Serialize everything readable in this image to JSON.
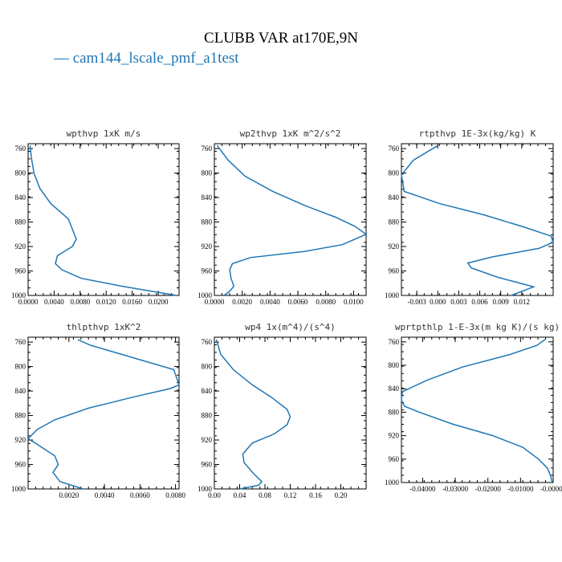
{
  "title": "CLUBB VAR at170E,9N",
  "legend_label": "— cam144_lscale_pmf_a1test",
  "colors": {
    "series": "#1f77b4",
    "axes": "#000000"
  },
  "chart_data": [
    {
      "type": "line",
      "title": "wpthvp  1xK m/s",
      "xlim": [
        0.0,
        0.0232
      ],
      "ylim": [
        1000,
        752
      ],
      "xticks": [
        "0.0000",
        "0.0040",
        "0.0080",
        "0.0120",
        "0.0160",
        "0.0200"
      ],
      "xtick_values": [
        0.0,
        0.004,
        0.008,
        0.012,
        0.016,
        0.02
      ],
      "yticks": [
        "760",
        "800",
        "840",
        "880",
        "920",
        "960",
        "1000"
      ],
      "ytick_values": [
        760,
        800,
        840,
        880,
        920,
        960,
        1000
      ],
      "x": [
        0.0003,
        0.0005,
        0.0009,
        0.0018,
        0.0035,
        0.0062,
        0.0074,
        0.0068,
        0.0045,
        0.0042,
        0.0052,
        0.0082,
        0.0145,
        0.0228
      ],
      "y": [
        755,
        775,
        800,
        825,
        850,
        875,
        908,
        920,
        935,
        948,
        958,
        972,
        985,
        1000
      ]
    },
    {
      "type": "line",
      "title": "wp2thvp  1xK m^2/s^2",
      "xlim": [
        0.0,
        0.0109
      ],
      "ylim": [
        1000,
        752
      ],
      "xticks": [
        "0.0000",
        "0.0020",
        "0.0040",
        "0.0060",
        "0.0080",
        "0.0100"
      ],
      "xtick_values": [
        0.0,
        0.002,
        0.004,
        0.006,
        0.008,
        0.01
      ],
      "yticks": [
        "760",
        "800",
        "840",
        "880",
        "920",
        "960",
        "1000"
      ],
      "ytick_values": [
        760,
        800,
        840,
        880,
        920,
        960,
        1000
      ],
      "x": [
        0.0002,
        0.001,
        0.0022,
        0.0042,
        0.0065,
        0.0087,
        0.0101,
        0.0109,
        0.0092,
        0.0065,
        0.0026,
        0.0013,
        0.0011,
        0.0012,
        0.0014,
        0.0011,
        0.0007
      ],
      "y": [
        755,
        779,
        805,
        830,
        853,
        872,
        887,
        900,
        917,
        928,
        938,
        948,
        958,
        972,
        985,
        993,
        1000
      ]
    },
    {
      "type": "line",
      "title": "rtpthvp  1E-3x(kg/kg) K",
      "xlim": [
        -0.0052,
        0.0165
      ],
      "ylim": [
        1000,
        752
      ],
      "xticks": [
        "-0.003",
        "0.000",
        "0.003",
        "0.006",
        "0.009",
        "0.012"
      ],
      "xtick_values": [
        -0.003,
        0.0,
        0.003,
        0.006,
        0.009,
        0.012
      ],
      "yticks": [
        "760",
        "800",
        "840",
        "880",
        "920",
        "960",
        "1000"
      ],
      "ytick_values": [
        760,
        800,
        840,
        880,
        920,
        960,
        1000
      ],
      "x": [
        0.0,
        -0.0035,
        -0.0052,
        -0.0048,
        0.0003,
        0.0065,
        0.012,
        0.0162,
        0.0165,
        0.0145,
        0.0078,
        0.0043,
        0.0048,
        0.0085,
        0.0137,
        0.0105
      ],
      "y": [
        755,
        779,
        803,
        830,
        850,
        868,
        887,
        903,
        913,
        923,
        937,
        947,
        955,
        970,
        986,
        1000
      ]
    },
    {
      "type": "line",
      "title": "thlpthvp  1xK^2",
      "xlim": [
        -0.0003,
        0.0082
      ],
      "ylim": [
        1000,
        752
      ],
      "xticks": [
        "0.0020",
        "0.0040",
        "0.0060",
        "0.0080"
      ],
      "xtick_values": [
        0.002,
        0.004,
        0.006,
        0.008
      ],
      "yticks": [
        "760",
        "800",
        "840",
        "880",
        "920",
        "960",
        "1000"
      ],
      "ytick_values": [
        760,
        800,
        840,
        880,
        920,
        960,
        1000
      ],
      "x": [
        0.0025,
        0.0032,
        0.0079,
        0.0082,
        0.0077,
        0.0056,
        0.0031,
        0.0012,
        0.0002,
        -0.0003,
        0.0001,
        0.0012,
        0.0014,
        0.0011,
        0.0015,
        0.0028
      ],
      "y": [
        756,
        765,
        805,
        830,
        836,
        850,
        868,
        887,
        903,
        918,
        925,
        946,
        960,
        973,
        988,
        1000
      ]
    },
    {
      "type": "line",
      "title": "wp4  1x(m^4)/(s^4)",
      "xlim": [
        0.0,
        0.24
      ],
      "ylim": [
        1000,
        752
      ],
      "xticks": [
        "0.00",
        "0.04",
        "0.08",
        "0.12",
        "0.16",
        "0.20"
      ],
      "xtick_values": [
        0.0,
        0.04,
        0.08,
        0.12,
        0.16,
        0.2
      ],
      "yticks": [
        "760",
        "800",
        "840",
        "880",
        "920",
        "960",
        "1000"
      ],
      "ytick_values": [
        760,
        800,
        840,
        880,
        920,
        960,
        1000
      ],
      "x": [
        0.003,
        0.01,
        0.03,
        0.06,
        0.09,
        0.115,
        0.12,
        0.115,
        0.095,
        0.06,
        0.045,
        0.047,
        0.062,
        0.075,
        0.07,
        0.04
      ],
      "y": [
        756,
        780,
        805,
        830,
        850,
        870,
        882,
        895,
        910,
        925,
        943,
        957,
        975,
        988,
        994,
        1000
      ]
    },
    {
      "type": "line",
      "title": "wprtpthlp  1-E-3x(m kg K)/(s kg)",
      "xlim": [
        -0.0465,
        0.0
      ],
      "ylim": [
        1000,
        752
      ],
      "xticks": [
        "-0.04000",
        "-0.03000",
        "-0.02000",
        "-0.01000",
        "-0.00000"
      ],
      "xtick_values": [
        -0.04,
        -0.03,
        -0.02,
        -0.01,
        0.0
      ],
      "yticks": [
        "760",
        "800",
        "840",
        "880",
        "920",
        "960",
        "1000"
      ],
      "ytick_values": [
        760,
        800,
        840,
        880,
        920,
        960,
        1000
      ],
      "x": [
        -0.0025,
        -0.005,
        -0.0135,
        -0.0278,
        -0.0385,
        -0.0462,
        -0.0465,
        -0.0455,
        -0.041,
        -0.031,
        -0.0185,
        -0.0093,
        -0.0045,
        -0.0018,
        -0.0008,
        -0.0003
      ],
      "y": [
        756,
        766,
        782,
        803,
        825,
        845,
        860,
        870,
        880,
        900,
        920,
        940,
        960,
        975,
        988,
        1000
      ]
    }
  ]
}
